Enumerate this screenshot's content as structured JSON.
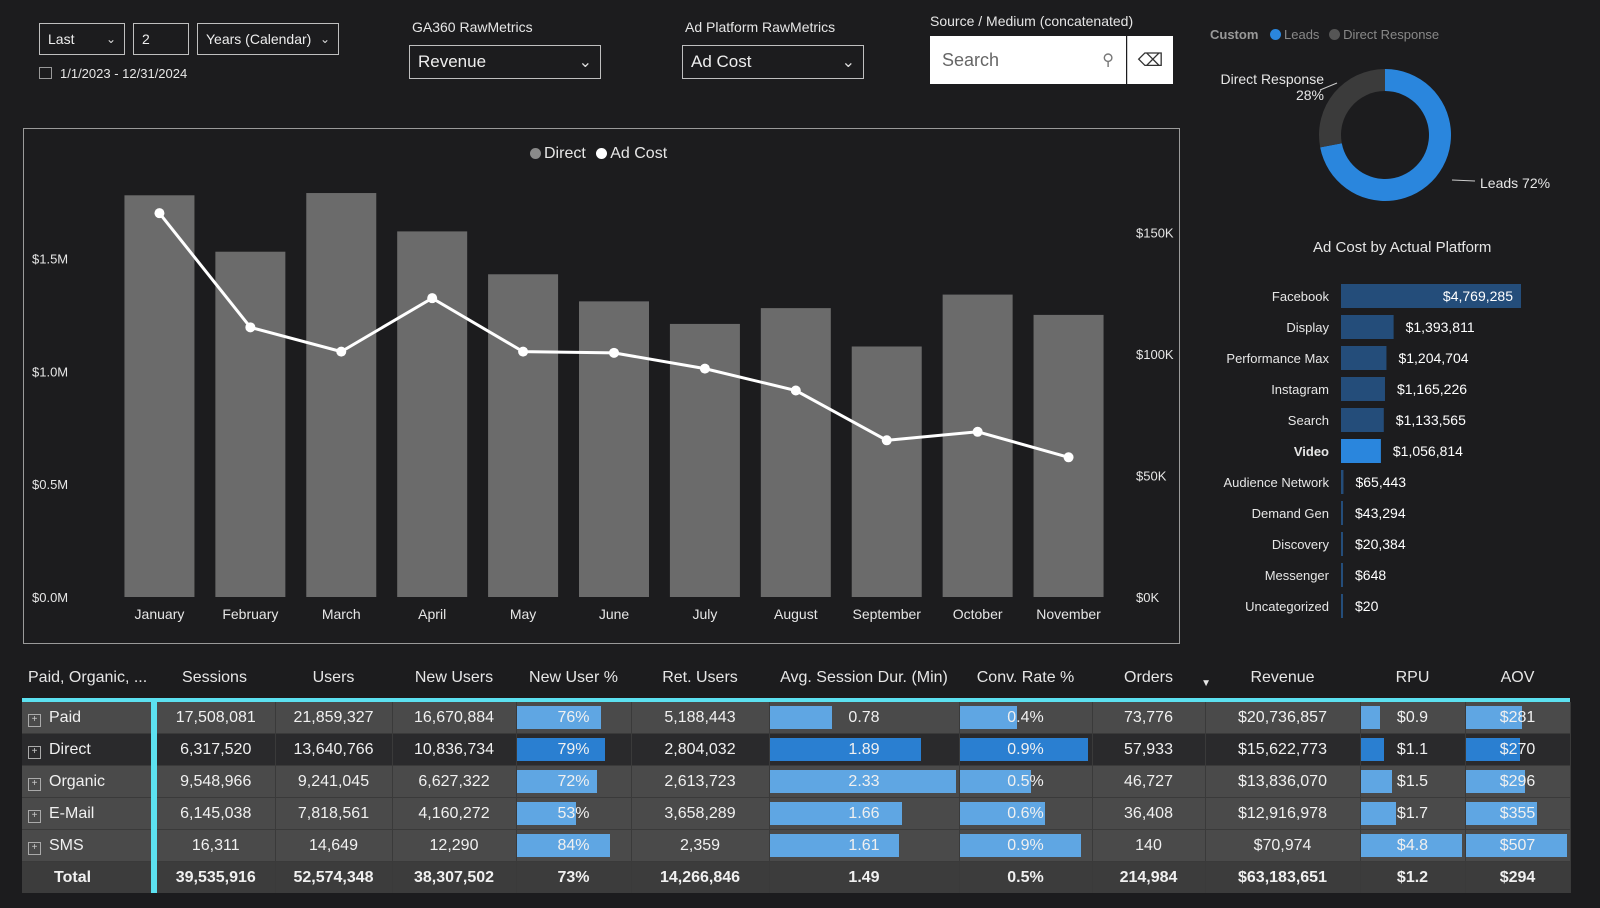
{
  "filters": {
    "relative_mode": "Last",
    "relative_count": "2",
    "period_unit": "Years (Calendar)",
    "date_range": "1/1/2023 - 12/31/2024",
    "ga360_label": "GA360 RawMetrics",
    "ga360_value": "Revenue",
    "ad_platform_label": "Ad Platform RawMetrics",
    "ad_platform_value": "Ad Cost",
    "source_medium_label": "Source / Medium (concatenated)",
    "search_placeholder": "Search"
  },
  "donut": {
    "legend_title": "Custom",
    "legend_items": [
      "Leads",
      "Direct Response"
    ],
    "direct_label": "Direct Response",
    "direct_pct_label": "28%",
    "leads_label": "Leads 72%",
    "slices": [
      {
        "name": "Leads",
        "value": 72,
        "color": "#2a86dd"
      },
      {
        "name": "Direct Response",
        "value": 28,
        "color": "#3b3b3b"
      }
    ]
  },
  "chart_data": [
    {
      "type": "bar",
      "legend": [
        "Direct",
        "Ad Cost"
      ],
      "categories": [
        "January",
        "February",
        "March",
        "April",
        "May",
        "June",
        "July",
        "August",
        "September",
        "October",
        "November"
      ],
      "series": [
        {
          "name": "Direct",
          "type": "bar",
          "axis": "left",
          "values": [
            1.78,
            1.53,
            1.79,
            1.62,
            1.43,
            1.31,
            1.21,
            1.28,
            1.11,
            1.34,
            1.25
          ]
        },
        {
          "name": "Ad Cost",
          "type": "line",
          "axis": "right",
          "values": [
            158000,
            111000,
            101000,
            123000,
            101000,
            100500,
            94000,
            85000,
            64500,
            68000,
            57500
          ]
        }
      ],
      "left_ticks": [
        "$0.0M",
        "$0.5M",
        "$1.0M",
        "$1.5M"
      ],
      "left_ylim": [
        0,
        1.83
      ],
      "right_ticks": [
        "$0K",
        "$50K",
        "$100K",
        "$150K"
      ],
      "right_ylim": [
        0,
        170000
      ],
      "colors": {
        "bar": "#6b6b6b",
        "line": "#ffffff"
      }
    },
    {
      "type": "bar",
      "orientation": "horizontal",
      "title": "Ad Cost by Actual Platform",
      "categories": [
        "Facebook",
        "Display",
        "Performance Max",
        "Instagram",
        "Search",
        "Video",
        "Audience Network",
        "Demand Gen",
        "Discovery",
        "Messenger",
        "Uncategorized"
      ],
      "values": [
        4769285,
        1393811,
        1204704,
        1165226,
        1133565,
        1056814,
        65443,
        43294,
        20384,
        648,
        20
      ],
      "value_labels": [
        "$4,769,285",
        "$1,393,811",
        "$1,204,704",
        "$1,165,226",
        "$1,133,565",
        "$1,056,814",
        "$65,443",
        "$43,294",
        "$20,384",
        "$648",
        "$20"
      ],
      "highlight": "Video",
      "colors": {
        "bar": "#244d7a",
        "highlight": "#2a86dd"
      }
    }
  ],
  "table": {
    "headers": [
      "Paid, Organic, ...",
      "Sessions",
      "Users",
      "New Users",
      "New User %",
      "Ret. Users",
      "Avg. Session Dur. (Min)",
      "Conv. Rate %",
      "Orders",
      "Revenue",
      "RPU",
      "AOV"
    ],
    "rows": [
      {
        "cells": [
          "Paid",
          "17,508,081",
          "21,859,327",
          "16,670,884",
          "76%",
          "5,188,443",
          "0.78",
          "0.4%",
          "73,776",
          "$20,736,857",
          "$0.9",
          "$281"
        ],
        "bars": [
          0.76,
          0.335,
          0.44,
          0.19,
          0.554
        ]
      },
      {
        "cells": [
          "Direct",
          "6,317,520",
          "13,640,766",
          "10,836,734",
          "79%",
          "2,804,032",
          "1.89",
          "0.9%",
          "57,933",
          "$15,622,773",
          "$1.1",
          "$270"
        ],
        "bars": [
          0.79,
          0.811,
          0.99,
          0.23,
          0.533
        ]
      },
      {
        "cells": [
          "Organic",
          "9,548,966",
          "9,241,045",
          "6,627,322",
          "72%",
          "2,613,723",
          "2.33",
          "0.5%",
          "46,727",
          "$13,836,070",
          "$1.5",
          "$296"
        ],
        "bars": [
          0.72,
          1.0,
          0.55,
          0.31,
          0.584
        ]
      },
      {
        "cells": [
          "E-Mail",
          "6,145,038",
          "7,818,561",
          "4,160,272",
          "53%",
          "3,658,289",
          "1.66",
          "0.6%",
          "36,408",
          "$12,916,978",
          "$1.7",
          "$355"
        ],
        "bars": [
          0.53,
          0.712,
          0.66,
          0.35,
          0.7
        ]
      },
      {
        "cells": [
          "SMS",
          "16,311",
          "14,649",
          "12,290",
          "84%",
          "2,359",
          "1.61",
          "0.9%",
          "140",
          "$70,974",
          "$4.8",
          "$507"
        ],
        "bars": [
          0.84,
          0.691,
          0.94,
          1.0,
          1.0
        ]
      }
    ],
    "total": [
      "Total",
      "39,535,916",
      "52,574,348",
      "38,307,502",
      "73%",
      "14,266,846",
      "1.49",
      "0.5%",
      "214,984",
      "$63,183,651",
      "$1.2",
      "$294"
    ],
    "sort_indicator": "▼"
  }
}
